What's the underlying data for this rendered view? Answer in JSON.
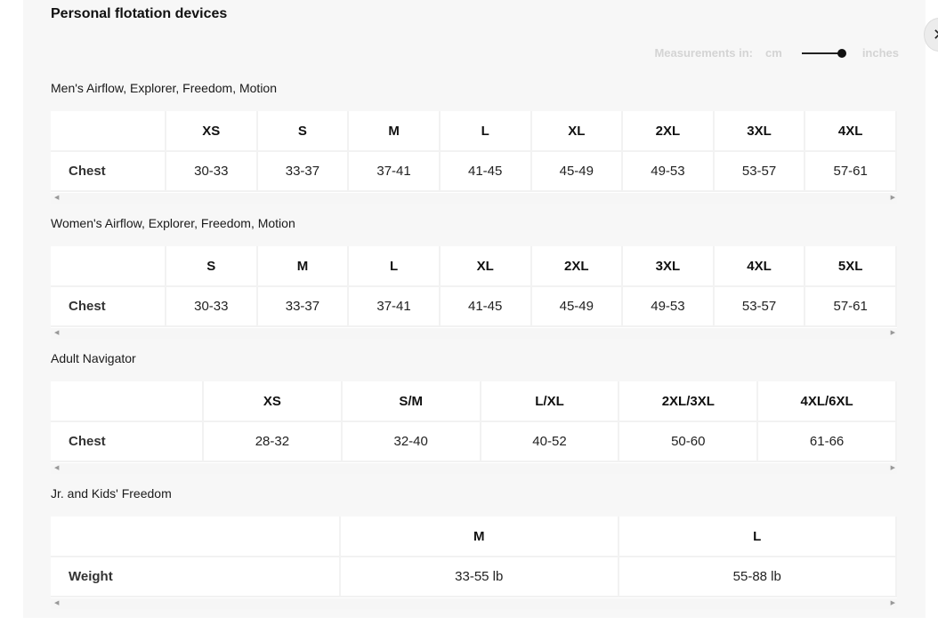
{
  "title": "Personal flotation devices",
  "measurements": {
    "label": "Measurements in:",
    "unit_cm": "cm",
    "unit_in": "inches",
    "selected": "inches"
  },
  "close_icon": "close-icon",
  "tables": [
    {
      "title": "Men's Airflow, Explorer, Freedom, Motion",
      "headers": [
        "XS",
        "S",
        "M",
        "L",
        "XL",
        "2XL",
        "3XL",
        "4XL"
      ],
      "row_label": "Chest",
      "values": [
        "30-33",
        "33-37",
        "37-41",
        "41-45",
        "45-49",
        "49-53",
        "53-57",
        "57-61"
      ]
    },
    {
      "title": "Women's Airflow, Explorer, Freedom, Motion",
      "headers": [
        "S",
        "M",
        "L",
        "XL",
        "2XL",
        "3XL",
        "4XL",
        "5XL"
      ],
      "row_label": "Chest",
      "values": [
        "30-33",
        "33-37",
        "37-41",
        "41-45",
        "45-49",
        "49-53",
        "53-57",
        "57-61"
      ]
    },
    {
      "title": "Adult Navigator",
      "headers": [
        "XS",
        "S/M",
        "L/XL",
        "2XL/3XL",
        "4XL/6XL"
      ],
      "row_label": "Chest",
      "values": [
        "28-32",
        "32-40",
        "40-52",
        "50-60",
        "61-66"
      ]
    },
    {
      "title": "Jr. and Kids' Freedom",
      "headers": [
        "M",
        "L"
      ],
      "row_label": "Weight",
      "values": [
        "33-55 lb",
        "55-88 lb"
      ]
    }
  ]
}
